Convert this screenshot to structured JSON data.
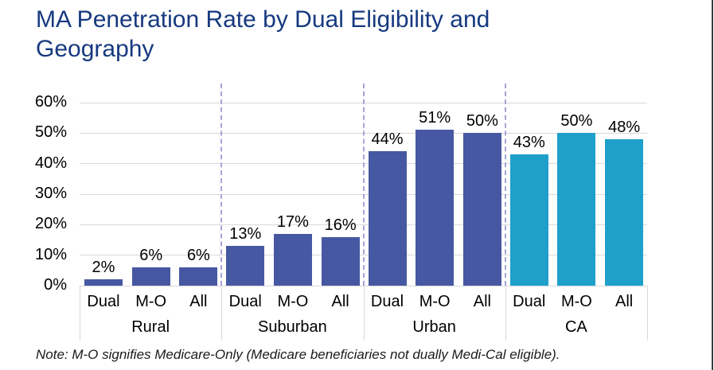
{
  "title_lines": [
    "MA Penetration Rate by Dual Eligibility and",
    "Geography"
  ],
  "note": "Note: M-O signifies Medicare-Only (Medicare beneficiaries not dually Medi-Cal eligible).",
  "colors": {
    "title": "#16397F",
    "bar_default": "#4658A2",
    "bar_highlight": "#1FA0CB",
    "gridline": "#D9D9D9",
    "separator": "#A5A5D8",
    "text": "#000000",
    "border": "#3d3d3d"
  },
  "chart_data": {
    "type": "bar",
    "title": "MA Penetration Rate by Dual Eligibility and Geography",
    "categories_per_group": [
      "Dual",
      "M-O",
      "All"
    ],
    "yticks": [
      "0%",
      "10%",
      "20%",
      "30%",
      "40%",
      "50%",
      "60%"
    ],
    "ylim": [
      0,
      60
    ],
    "grid": true,
    "legend": "none",
    "groups": [
      {
        "label": "Rural",
        "color": "#4658A2",
        "bars": [
          {
            "category": "Dual",
            "value": 2,
            "label": "2%"
          },
          {
            "category": "M-O",
            "value": 6,
            "label": "6%"
          },
          {
            "category": "All",
            "value": 6,
            "label": "6%"
          }
        ]
      },
      {
        "label": "Suburban",
        "color": "#4658A2",
        "bars": [
          {
            "category": "Dual",
            "value": 13,
            "label": "13%"
          },
          {
            "category": "M-O",
            "value": 17,
            "label": "17%"
          },
          {
            "category": "All",
            "value": 16,
            "label": "16%"
          }
        ]
      },
      {
        "label": "Urban",
        "color": "#4658A2",
        "bars": [
          {
            "category": "Dual",
            "value": 44,
            "label": "44%"
          },
          {
            "category": "M-O",
            "value": 51,
            "label": "51%"
          },
          {
            "category": "All",
            "value": 50,
            "label": "50%"
          }
        ]
      },
      {
        "label": "CA",
        "color": "#1FA0CB",
        "bars": [
          {
            "category": "Dual",
            "value": 43,
            "label": "43%"
          },
          {
            "category": "M-O",
            "value": 50,
            "label": "50%"
          },
          {
            "category": "All",
            "value": 48,
            "label": "48%"
          }
        ]
      }
    ]
  }
}
